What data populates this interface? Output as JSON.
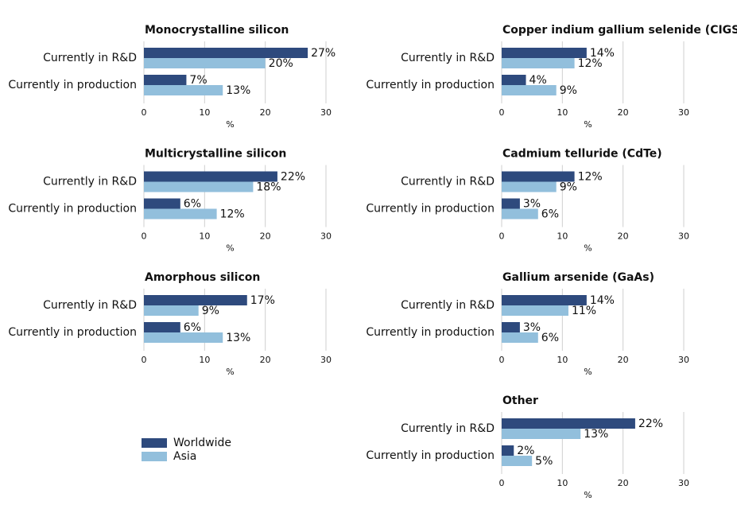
{
  "chart_data": [
    {
      "type": "bar",
      "orientation": "horizontal",
      "title": "Monocrystalline silicon",
      "categories": [
        "Currently in R&D",
        "Currently in production"
      ],
      "series": [
        {
          "name": "Worldwide",
          "color": "#2e4a7d",
          "values": [
            27,
            7
          ],
          "value_labels": [
            "27%",
            "7%"
          ]
        },
        {
          "name": "Asia",
          "color": "#92bfdc",
          "values": [
            20,
            13
          ],
          "value_labels": [
            "20%",
            "13%"
          ]
        }
      ],
      "xlim": [
        0,
        30
      ],
      "xticks": [
        0,
        10,
        20,
        30
      ],
      "x_label": "%",
      "grid": true
    },
    {
      "type": "bar",
      "orientation": "horizontal",
      "title": "Multicrystalline silicon",
      "categories": [
        "Currently in R&D",
        "Currently in production"
      ],
      "series": [
        {
          "name": "Worldwide",
          "color": "#2e4a7d",
          "values": [
            22,
            6
          ],
          "value_labels": [
            "22%",
            "6%"
          ]
        },
        {
          "name": "Asia",
          "color": "#92bfdc",
          "values": [
            18,
            12
          ],
          "value_labels": [
            "18%",
            "12%"
          ]
        }
      ],
      "xlim": [
        0,
        30
      ],
      "xticks": [
        0,
        10,
        20,
        30
      ],
      "x_label": "%",
      "grid": true
    },
    {
      "type": "bar",
      "orientation": "horizontal",
      "title": "Amorphous silicon",
      "categories": [
        "Currently in R&D",
        "Currently in production"
      ],
      "series": [
        {
          "name": "Worldwide",
          "color": "#2e4a7d",
          "values": [
            17,
            6
          ],
          "value_labels": [
            "17%",
            "6%"
          ]
        },
        {
          "name": "Asia",
          "color": "#92bfdc",
          "values": [
            9,
            13
          ],
          "value_labels": [
            "9%",
            "13%"
          ]
        }
      ],
      "xlim": [
        0,
        30
      ],
      "xticks": [
        0,
        10,
        20,
        30
      ],
      "x_label": "%",
      "grid": true
    },
    {
      "type": "bar",
      "orientation": "horizontal",
      "title": "Copper indium gallium selenide (CIGS)",
      "categories": [
        "Currently in R&D",
        "Currently in production"
      ],
      "series": [
        {
          "name": "Worldwide",
          "color": "#2e4a7d",
          "values": [
            14,
            4
          ],
          "value_labels": [
            "14%",
            "4%"
          ]
        },
        {
          "name": "Asia",
          "color": "#92bfdc",
          "values": [
            12,
            9
          ],
          "value_labels": [
            "12%",
            "9%"
          ]
        }
      ],
      "xlim": [
        0,
        30
      ],
      "xticks": [
        0,
        10,
        20,
        30
      ],
      "x_label": "%",
      "grid": true
    },
    {
      "type": "bar",
      "orientation": "horizontal",
      "title": "Cadmium telluride (CdTe)",
      "categories": [
        "Currently in R&D",
        "Currently in production"
      ],
      "series": [
        {
          "name": "Worldwide",
          "color": "#2e4a7d",
          "values": [
            12,
            3
          ],
          "value_labels": [
            "12%",
            "3%"
          ]
        },
        {
          "name": "Asia",
          "color": "#92bfdc",
          "values": [
            9,
            6
          ],
          "value_labels": [
            "9%",
            "6%"
          ]
        }
      ],
      "xlim": [
        0,
        30
      ],
      "xticks": [
        0,
        10,
        20,
        30
      ],
      "x_label": "%",
      "grid": true
    },
    {
      "type": "bar",
      "orientation": "horizontal",
      "title": "Gallium arsenide (GaAs)",
      "categories": [
        "Currently in R&D",
        "Currently in production"
      ],
      "series": [
        {
          "name": "Worldwide",
          "color": "#2e4a7d",
          "values": [
            14,
            3
          ],
          "value_labels": [
            "14%",
            "3%"
          ]
        },
        {
          "name": "Asia",
          "color": "#92bfdc",
          "values": [
            11,
            6
          ],
          "value_labels": [
            "11%",
            "6%"
          ]
        }
      ],
      "xlim": [
        0,
        30
      ],
      "xticks": [
        0,
        10,
        20,
        30
      ],
      "x_label": "%",
      "grid": true
    },
    {
      "type": "bar",
      "orientation": "horizontal",
      "title": "Other",
      "categories": [
        "Currently in R&D",
        "Currently in production"
      ],
      "series": [
        {
          "name": "Worldwide",
          "color": "#2e4a7d",
          "values": [
            22,
            2
          ],
          "value_labels": [
            "22%",
            "2%"
          ]
        },
        {
          "name": "Asia",
          "color": "#92bfdc",
          "values": [
            13,
            5
          ],
          "value_labels": [
            "13%",
            "5%"
          ]
        }
      ],
      "xlim": [
        0,
        30
      ],
      "xticks": [
        0,
        10,
        20,
        30
      ],
      "x_label": "%",
      "grid": true
    }
  ]
}
